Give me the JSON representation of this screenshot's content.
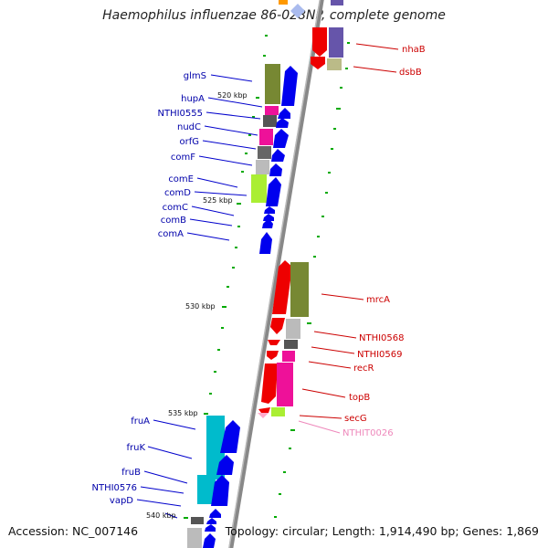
{
  "title": "Haemophilus influenzae 86-028NP, complete genome",
  "accession": "Accession: NC_007146",
  "topology": "Topology: circular; Length: 1,914,490 bp; Genes: 1,869",
  "kbp_labels": [
    "520 kbp",
    "525 kbp",
    "530 kbp",
    "535 kbp",
    "540 kbp"
  ],
  "colors": {
    "plus_strand": "#0000ee",
    "minus_strand": "#ee0000",
    "backbone": "#888888",
    "tick": "#00aa00",
    "label_blue": "#0000aa",
    "label_red": "#cc0000",
    "label_pink": "#ee88bb"
  },
  "left_labels": [
    "glmS",
    "hupA",
    "NTHI0555",
    "nudC",
    "orfG",
    "comF",
    "comE",
    "comD",
    "comC",
    "comB",
    "comA",
    "fruA",
    "fruK",
    "fruB",
    "NTHI0576",
    "vapD"
  ],
  "right_labels": [
    "nhaB",
    "dsbB",
    "mrcA",
    "NTHI0568",
    "NTHI0569",
    "recR",
    "topB",
    "secG",
    "NTHIT0026"
  ]
}
